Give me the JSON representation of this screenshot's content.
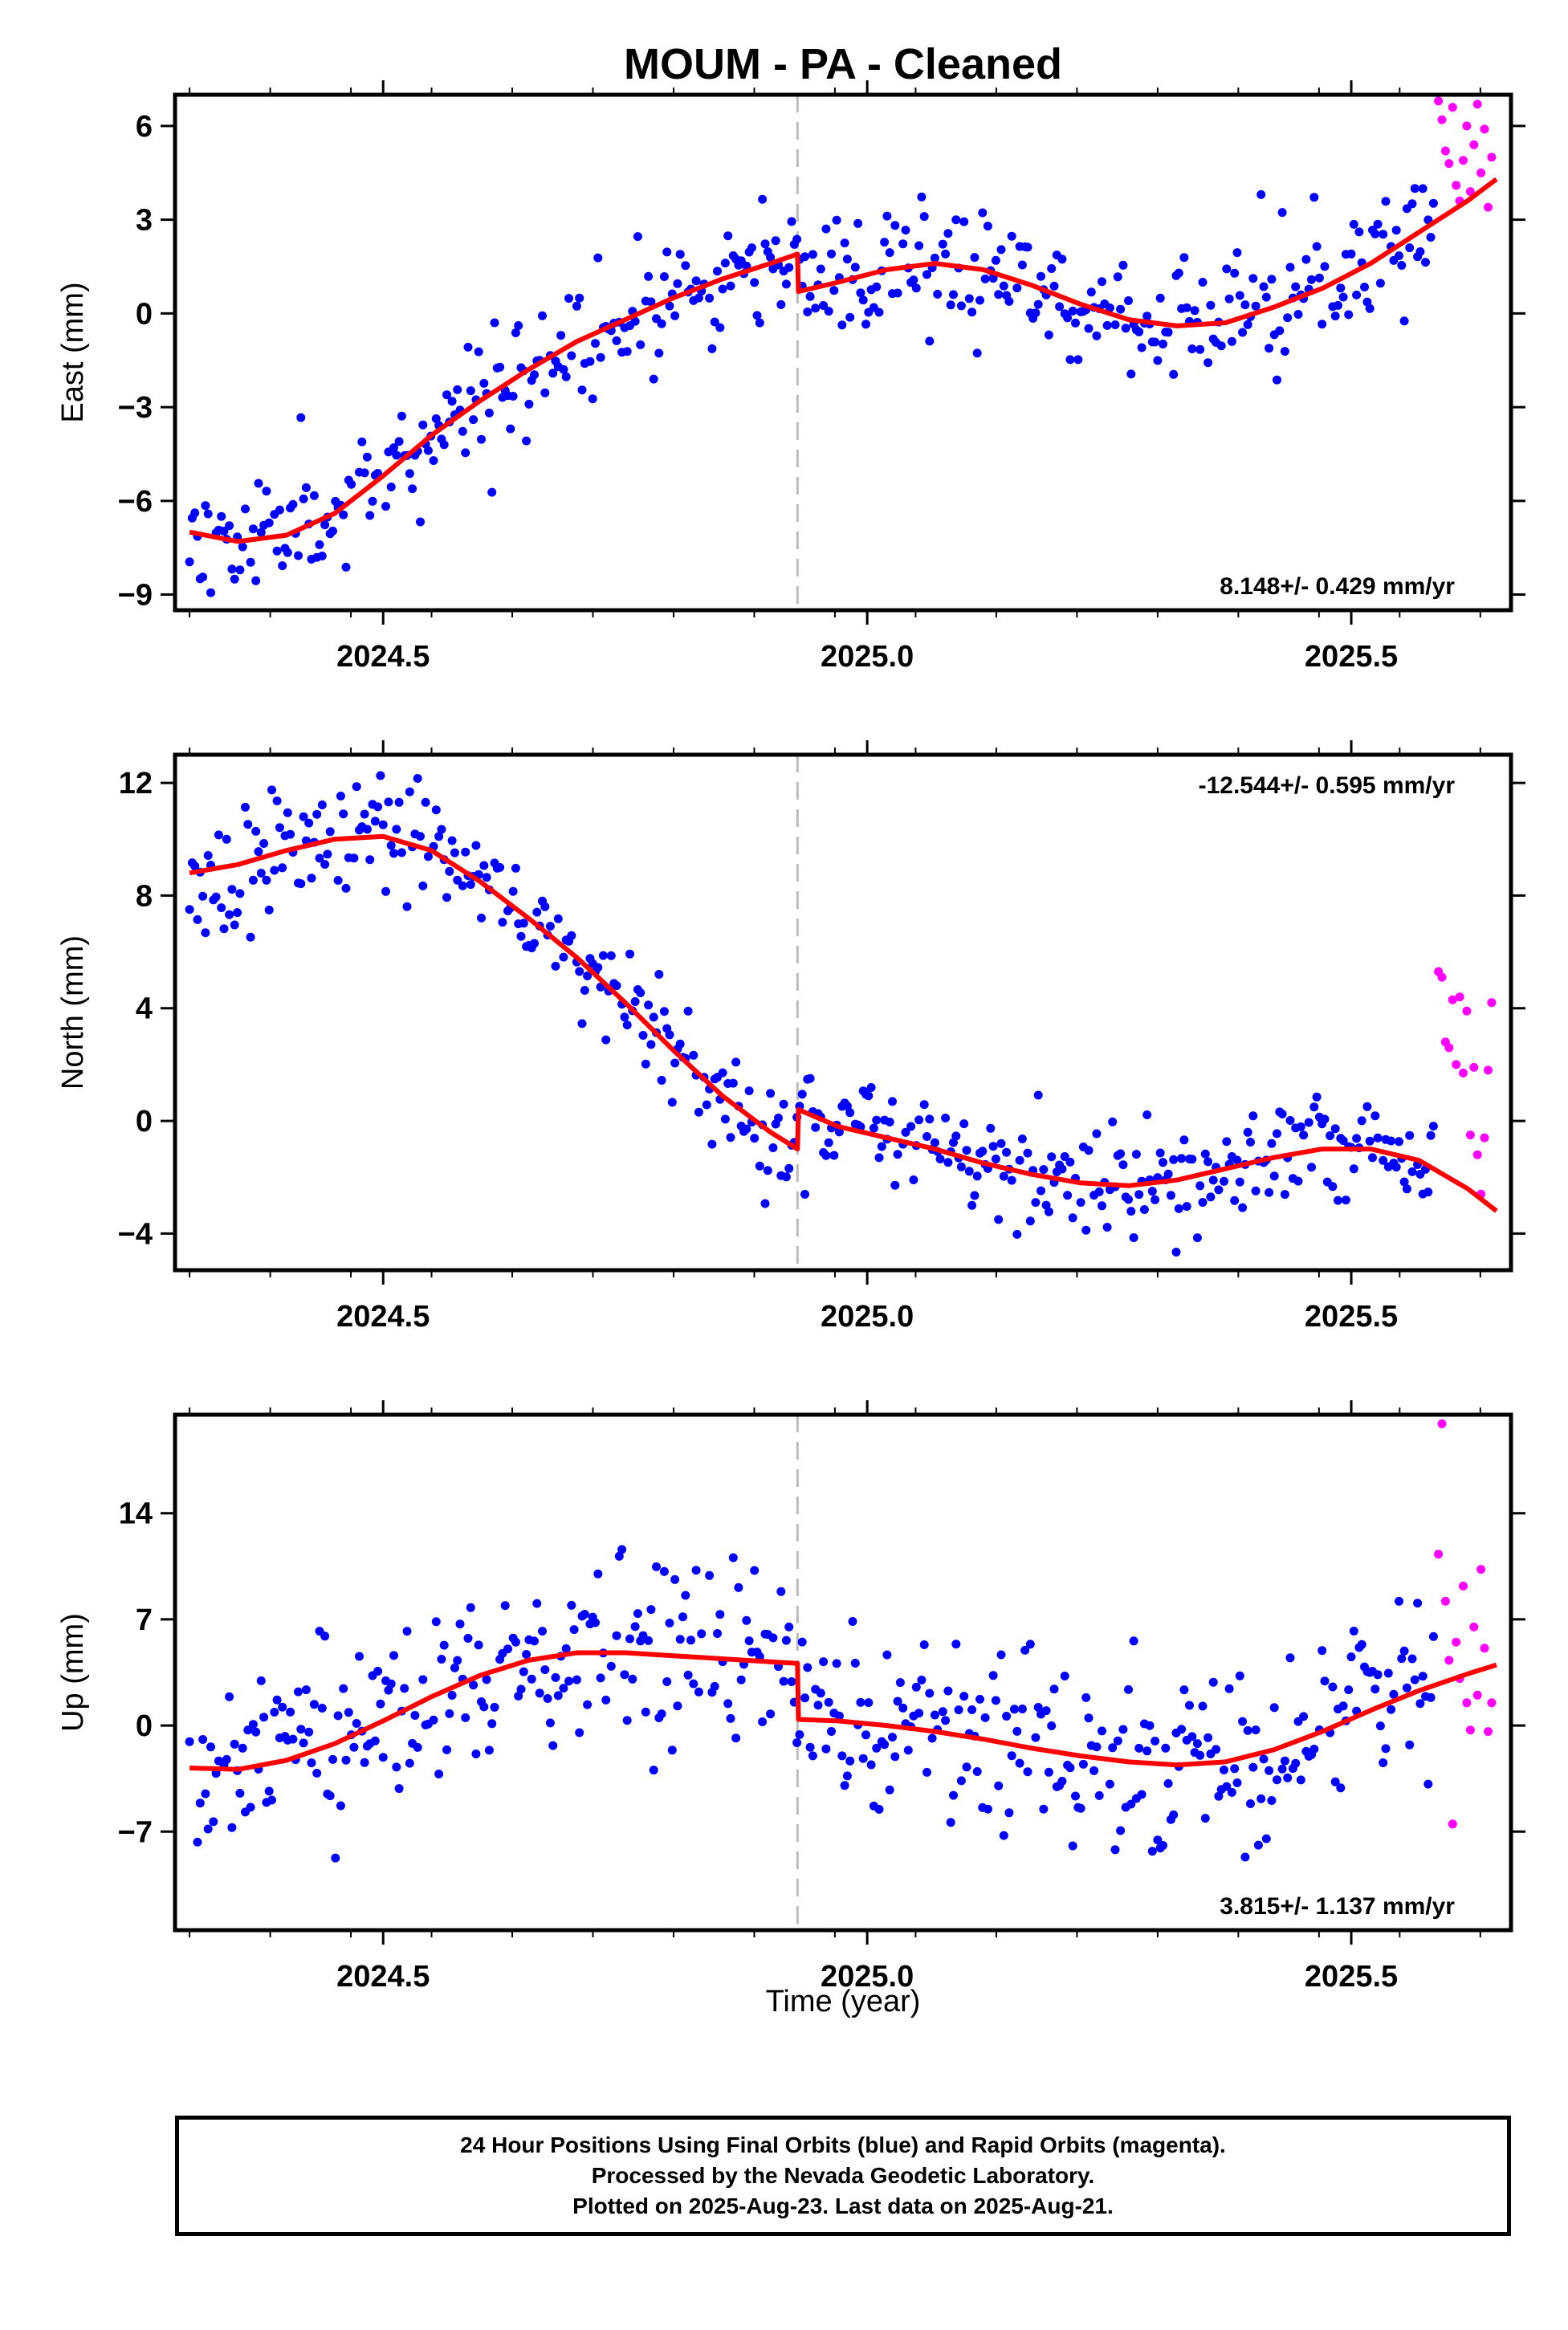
{
  "title": "MOUM  - PA - Cleaned",
  "x_axis_label": "Time (year)",
  "colors": {
    "final": "#0000ff",
    "rapid": "#ff00ff",
    "model": "#ff0000",
    "offset_line": "#bbbbbb"
  },
  "caption": [
    "24 Hour Positions Using Final Orbits (blue) and Rapid Orbits (magenta).",
    "Processed by the Nevada Geodetic Laboratory.",
    "Plotted on 2025-Aug-23. Last data on 2025-Aug-21."
  ],
  "chart_data": [
    {
      "type": "scatter",
      "component": "East",
      "ylabel": "East (mm)",
      "xlim": [
        2024.285,
        2025.665
      ],
      "ylim": [
        -9.5,
        7.0
      ],
      "xticks": [
        2024.5,
        2025.0,
        2025.5
      ],
      "xtick_labels": [
        "2024.5",
        "2025.0",
        "2025.5"
      ],
      "yticks": [
        -9,
        -6,
        -3,
        0,
        3,
        6
      ],
      "ytick_labels": [
        "−9",
        "−6",
        "−3",
        "0",
        "3",
        "6"
      ],
      "offset_epoch": 2024.928,
      "rate_text": "8.148+/- 0.429 mm/yr",
      "rate_position": "bottom-right",
      "model": [
        [
          2024.3,
          -7.0
        ],
        [
          2024.35,
          -7.3
        ],
        [
          2024.4,
          -7.1
        ],
        [
          2024.45,
          -6.4
        ],
        [
          2024.5,
          -5.2
        ],
        [
          2024.55,
          -3.9
        ],
        [
          2024.6,
          -2.8
        ],
        [
          2024.65,
          -1.8
        ],
        [
          2024.7,
          -0.9
        ],
        [
          2024.75,
          -0.2
        ],
        [
          2024.8,
          0.5
        ],
        [
          2024.85,
          1.1
        ],
        [
          2024.9,
          1.6
        ],
        [
          2024.928,
          1.9
        ],
        [
          2024.929,
          0.7
        ],
        [
          2024.97,
          1.0
        ],
        [
          2025.02,
          1.4
        ],
        [
          2025.07,
          1.6
        ],
        [
          2025.12,
          1.4
        ],
        [
          2025.17,
          0.9
        ],
        [
          2025.22,
          0.3
        ],
        [
          2025.27,
          -0.2
        ],
        [
          2025.32,
          -0.4
        ],
        [
          2025.37,
          -0.3
        ],
        [
          2025.42,
          0.2
        ],
        [
          2025.47,
          0.8
        ],
        [
          2025.52,
          1.6
        ],
        [
          2025.57,
          2.6
        ],
        [
          2025.62,
          3.6
        ],
        [
          2025.65,
          4.3
        ]
      ],
      "seed": 11,
      "noise": 1.0,
      "final_range": [
        2024.3,
        2025.585
      ],
      "rapid_range": [
        2025.59,
        2025.645
      ],
      "rapid_values": [
        6.8,
        6.2,
        5.2,
        4.8,
        6.6,
        4.1,
        3.6,
        4.9,
        6.0,
        3.9,
        5.4,
        6.7,
        4.5,
        5.9,
        3.4,
        5.0
      ]
    },
    {
      "type": "scatter",
      "component": "North",
      "ylabel": "North (mm)",
      "xlim": [
        2024.285,
        2025.665
      ],
      "ylim": [
        -5.3,
        13.0
      ],
      "xticks": [
        2024.5,
        2025.0,
        2025.5
      ],
      "xtick_labels": [
        "2024.5",
        "2025.0",
        "2025.5"
      ],
      "yticks": [
        -4,
        0,
        4,
        8,
        12
      ],
      "ytick_labels": [
        "−4",
        "0",
        "4",
        "8",
        "12"
      ],
      "offset_epoch": 2024.928,
      "rate_text": "-12.544+/- 0.595 mm/yr",
      "rate_position": "top-right",
      "model": [
        [
          2024.3,
          8.8
        ],
        [
          2024.35,
          9.1
        ],
        [
          2024.4,
          9.6
        ],
        [
          2024.45,
          10.0
        ],
        [
          2024.5,
          10.1
        ],
        [
          2024.55,
          9.6
        ],
        [
          2024.6,
          8.5
        ],
        [
          2024.65,
          7.2
        ],
        [
          2024.7,
          5.8
        ],
        [
          2024.75,
          4.2
        ],
        [
          2024.8,
          2.5
        ],
        [
          2024.85,
          0.9
        ],
        [
          2024.9,
          -0.4
        ],
        [
          2024.928,
          -1.0
        ],
        [
          2024.929,
          0.4
        ],
        [
          2024.97,
          -0.2
        ],
        [
          2025.02,
          -0.6
        ],
        [
          2025.07,
          -1.0
        ],
        [
          2025.12,
          -1.5
        ],
        [
          2025.17,
          -1.9
        ],
        [
          2025.22,
          -2.2
        ],
        [
          2025.27,
          -2.3
        ],
        [
          2025.32,
          -2.1
        ],
        [
          2025.37,
          -1.7
        ],
        [
          2025.42,
          -1.3
        ],
        [
          2025.47,
          -1.0
        ],
        [
          2025.52,
          -1.0
        ],
        [
          2025.57,
          -1.4
        ],
        [
          2025.62,
          -2.4
        ],
        [
          2025.65,
          -3.2
        ]
      ],
      "seed": 23,
      "noise": 1.0,
      "final_range": [
        2024.3,
        2025.585
      ],
      "rapid_range": [
        2025.59,
        2025.645
      ],
      "rapid_values": [
        5.3,
        5.1,
        2.8,
        2.6,
        4.3,
        2.0,
        4.4,
        1.7,
        3.9,
        -0.5,
        1.9,
        -1.2,
        -2.6,
        -0.6,
        1.8,
        4.2
      ]
    },
    {
      "type": "scatter",
      "component": "Up",
      "ylabel": "Up (mm)",
      "xlim": [
        2024.285,
        2025.665
      ],
      "ylim": [
        -13.5,
        20.5
      ],
      "xticks": [
        2024.5,
        2025.0,
        2025.5
      ],
      "xtick_labels": [
        "2024.5",
        "2025.0",
        "2025.5"
      ],
      "yticks": [
        -7,
        0,
        7,
        14
      ],
      "ytick_labels": [
        "−7",
        "0",
        "7",
        "14"
      ],
      "offset_epoch": 2024.928,
      "rate_text": "3.815+/- 1.137 mm/yr",
      "rate_position": "bottom-right",
      "model": [
        [
          2024.3,
          -2.8
        ],
        [
          2024.35,
          -2.9
        ],
        [
          2024.4,
          -2.3
        ],
        [
          2024.45,
          -1.2
        ],
        [
          2024.5,
          0.3
        ],
        [
          2024.55,
          1.9
        ],
        [
          2024.6,
          3.3
        ],
        [
          2024.65,
          4.3
        ],
        [
          2024.7,
          4.8
        ],
        [
          2024.75,
          4.8
        ],
        [
          2024.8,
          4.6
        ],
        [
          2024.85,
          4.4
        ],
        [
          2024.9,
          4.2
        ],
        [
          2024.928,
          4.1
        ],
        [
          2024.929,
          0.4
        ],
        [
          2024.97,
          0.3
        ],
        [
          2025.02,
          0.0
        ],
        [
          2025.07,
          -0.4
        ],
        [
          2025.12,
          -0.9
        ],
        [
          2025.17,
          -1.5
        ],
        [
          2025.22,
          -2.0
        ],
        [
          2025.27,
          -2.4
        ],
        [
          2025.32,
          -2.6
        ],
        [
          2025.37,
          -2.4
        ],
        [
          2025.42,
          -1.6
        ],
        [
          2025.47,
          -0.4
        ],
        [
          2025.52,
          1.0
        ],
        [
          2025.57,
          2.3
        ],
        [
          2025.62,
          3.4
        ],
        [
          2025.65,
          4.0
        ]
      ],
      "seed": 37,
      "noise": 3.2,
      "final_range": [
        2024.3,
        2025.585
      ],
      "rapid_range": [
        2025.59,
        2025.645
      ],
      "rapid_values": [
        11.3,
        19.9,
        8.2,
        4.3,
        -6.5,
        5.5,
        3.1,
        9.2,
        1.5,
        -0.3,
        6.5,
        2.0,
        10.3,
        5.1,
        -0.4,
        1.5
      ]
    }
  ]
}
